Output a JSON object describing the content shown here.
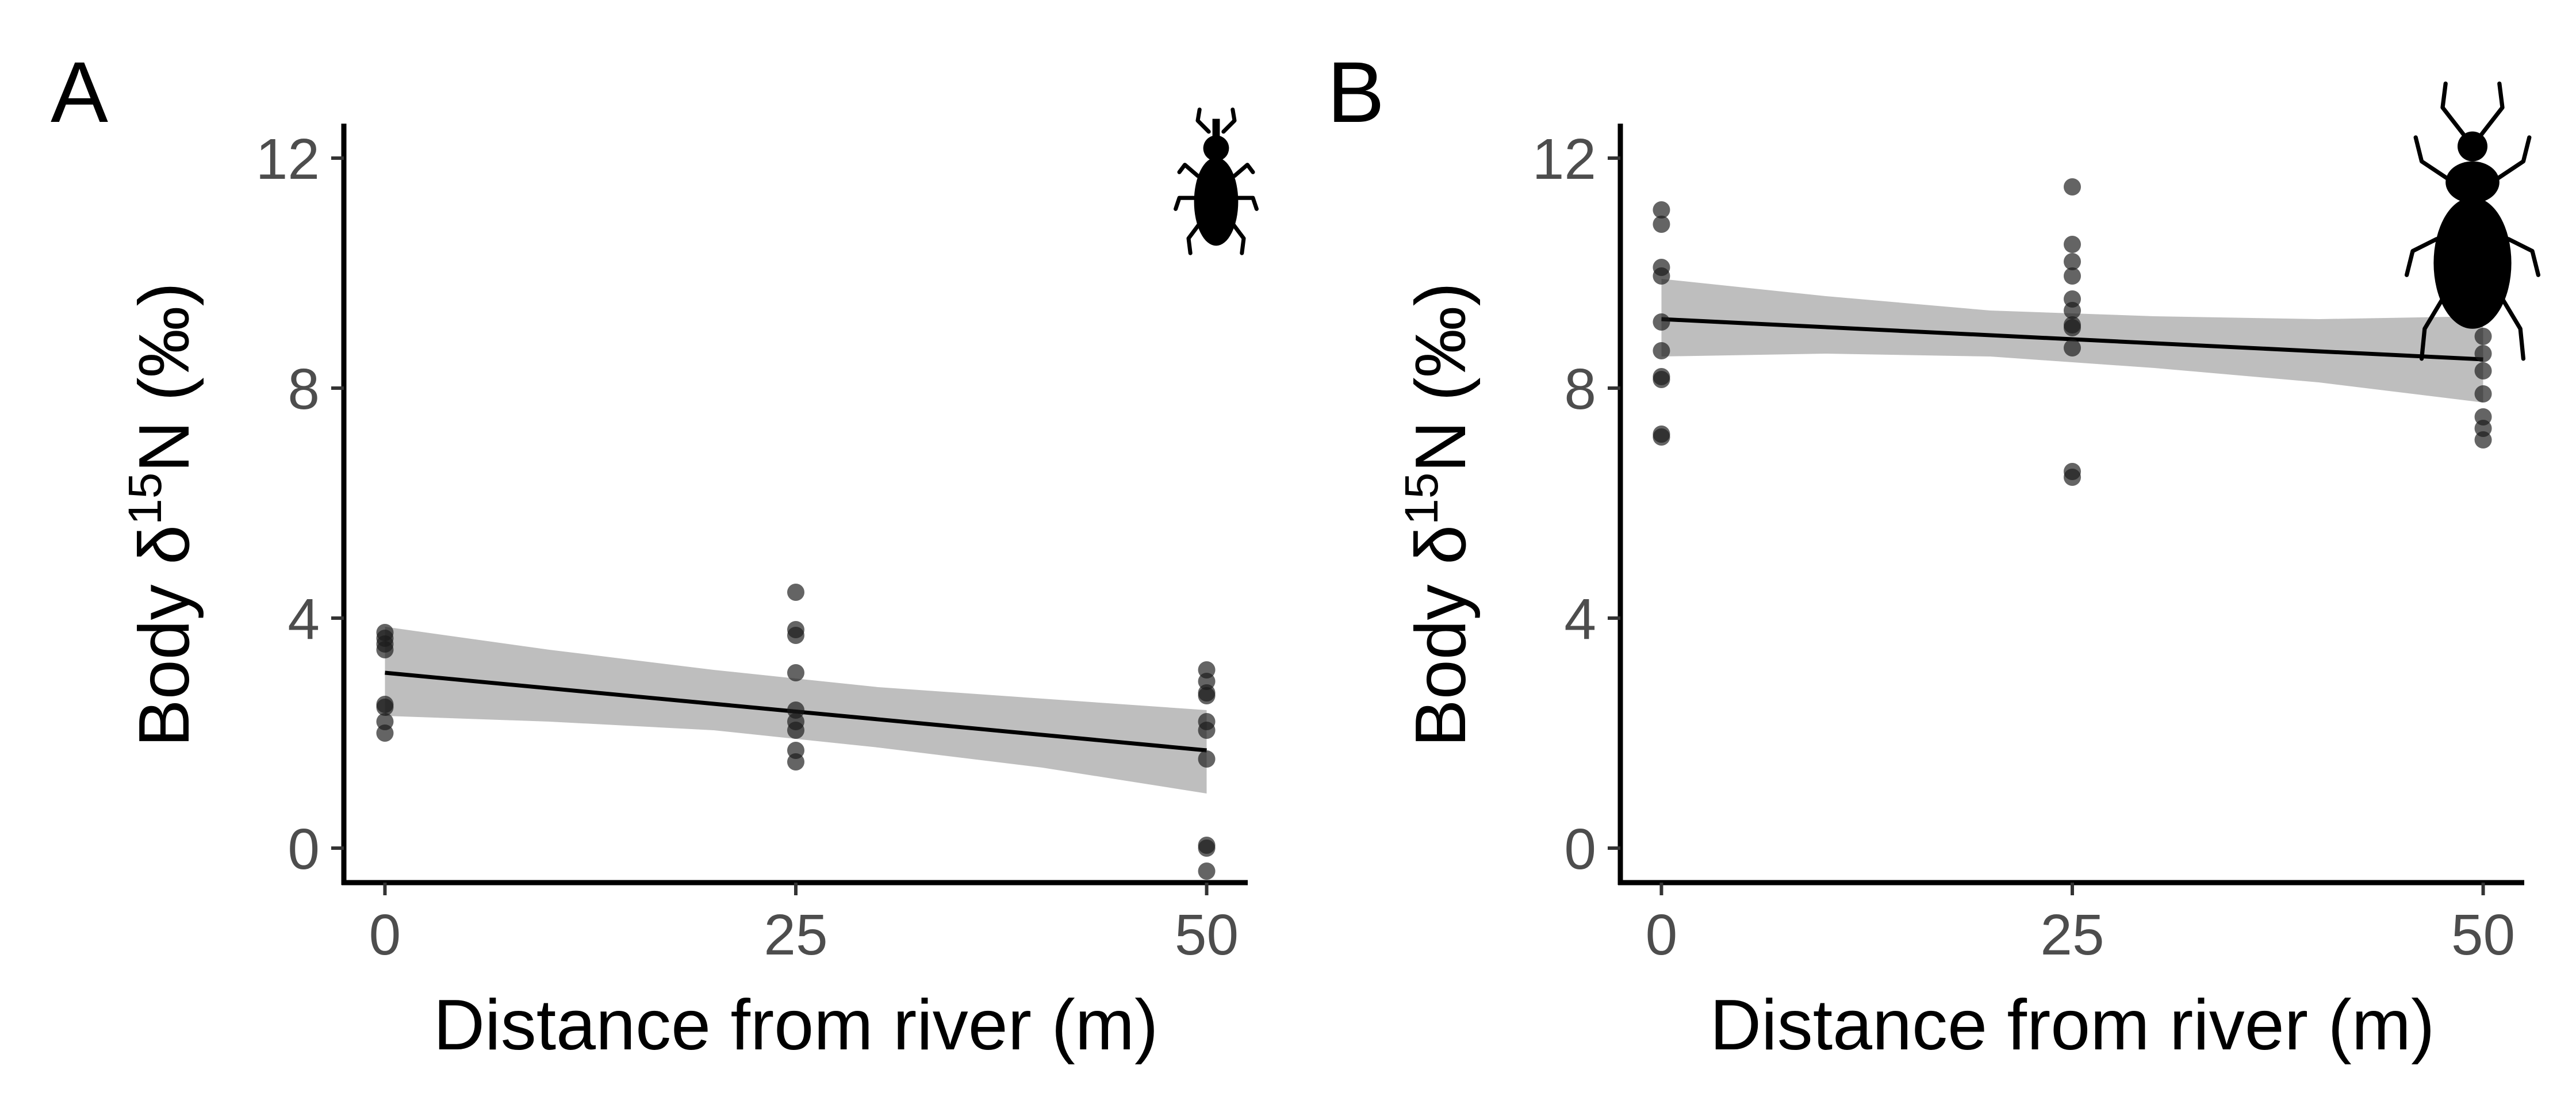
{
  "chart_data": [
    {
      "panel": "A",
      "type": "scatter",
      "xlabel": "Distance from river (m)",
      "ylabel_prefix": "Body δ",
      "ylabel_superscript": "15",
      "ylabel_suffix": "N (‰)",
      "xlim": [
        -2.5,
        52.5
      ],
      "ylim": [
        -0.6,
        12.6
      ],
      "x_ticks": [
        0,
        25,
        50
      ],
      "y_ticks": [
        0,
        4,
        8,
        12
      ],
      "grid": false,
      "icon": "weevil-silhouette-icon",
      "points": [
        {
          "x": 0,
          "y": 3.75
        },
        {
          "x": 0,
          "y": 3.65
        },
        {
          "x": 0,
          "y": 3.55
        },
        {
          "x": 0,
          "y": 3.45
        },
        {
          "x": 0,
          "y": 2.5
        },
        {
          "x": 0,
          "y": 2.45
        },
        {
          "x": 0,
          "y": 2.2
        },
        {
          "x": 0,
          "y": 2.0
        },
        {
          "x": 25,
          "y": 4.45
        },
        {
          "x": 25,
          "y": 3.8
        },
        {
          "x": 25,
          "y": 3.7
        },
        {
          "x": 25,
          "y": 3.05
        },
        {
          "x": 25,
          "y": 2.4
        },
        {
          "x": 25,
          "y": 2.2
        },
        {
          "x": 25,
          "y": 2.05
        },
        {
          "x": 25,
          "y": 1.7
        },
        {
          "x": 25,
          "y": 1.5
        },
        {
          "x": 50,
          "y": 3.1
        },
        {
          "x": 50,
          "y": 2.9
        },
        {
          "x": 50,
          "y": 2.7
        },
        {
          "x": 50,
          "y": 2.65
        },
        {
          "x": 50,
          "y": 2.2
        },
        {
          "x": 50,
          "y": 2.05
        },
        {
          "x": 50,
          "y": 1.55
        },
        {
          "x": 50,
          "y": 0.05
        },
        {
          "x": 50,
          "y": 0.0
        },
        {
          "x": 50,
          "y": -0.4
        }
      ],
      "trend": {
        "x": [
          0,
          50
        ],
        "y": [
          3.05,
          1.7
        ]
      },
      "ci": {
        "x": [
          0,
          10,
          20,
          30,
          40,
          50
        ],
        "upper": [
          3.85,
          3.45,
          3.1,
          2.8,
          2.6,
          2.4
        ],
        "lower": [
          2.3,
          2.2,
          2.05,
          1.75,
          1.4,
          0.95
        ]
      }
    },
    {
      "panel": "B",
      "type": "scatter",
      "xlabel": "Distance from river (m)",
      "ylabel_prefix": "Body δ",
      "ylabel_superscript": "15",
      "ylabel_suffix": "N (‰)",
      "xlim": [
        -2.5,
        52.5
      ],
      "ylim": [
        -0.6,
        12.6
      ],
      "x_ticks": [
        0,
        25,
        50
      ],
      "y_ticks": [
        0,
        4,
        8,
        12
      ],
      "grid": false,
      "icon": "ground-beetle-silhouette-icon",
      "points": [
        {
          "x": 0,
          "y": 11.1
        },
        {
          "x": 0,
          "y": 10.85
        },
        {
          "x": 0,
          "y": 10.1
        },
        {
          "x": 0,
          "y": 9.95
        },
        {
          "x": 0,
          "y": 9.15
        },
        {
          "x": 0,
          "y": 8.65
        },
        {
          "x": 0,
          "y": 8.2
        },
        {
          "x": 0,
          "y": 8.15
        },
        {
          "x": 0,
          "y": 7.2
        },
        {
          "x": 0,
          "y": 7.15
        },
        {
          "x": 25,
          "y": 11.5
        },
        {
          "x": 25,
          "y": 10.5
        },
        {
          "x": 25,
          "y": 10.2
        },
        {
          "x": 25,
          "y": 9.95
        },
        {
          "x": 25,
          "y": 9.55
        },
        {
          "x": 25,
          "y": 9.35
        },
        {
          "x": 25,
          "y": 9.1
        },
        {
          "x": 25,
          "y": 9.05
        },
        {
          "x": 25,
          "y": 8.7
        },
        {
          "x": 25,
          "y": 6.55
        },
        {
          "x": 25,
          "y": 6.45
        },
        {
          "x": 50,
          "y": 9.25
        },
        {
          "x": 50,
          "y": 8.9
        },
        {
          "x": 50,
          "y": 8.6
        },
        {
          "x": 50,
          "y": 8.3
        },
        {
          "x": 50,
          "y": 7.9
        },
        {
          "x": 50,
          "y": 7.5
        },
        {
          "x": 50,
          "y": 7.3
        },
        {
          "x": 50,
          "y": 7.1
        }
      ],
      "trend": {
        "x": [
          0,
          50
        ],
        "y": [
          9.2,
          8.5
        ]
      },
      "ci": {
        "x": [
          0,
          10,
          20,
          30,
          40,
          50
        ],
        "upper": [
          9.9,
          9.6,
          9.35,
          9.25,
          9.2,
          9.25
        ],
        "lower": [
          8.55,
          8.6,
          8.55,
          8.35,
          8.1,
          7.75
        ]
      }
    }
  ]
}
